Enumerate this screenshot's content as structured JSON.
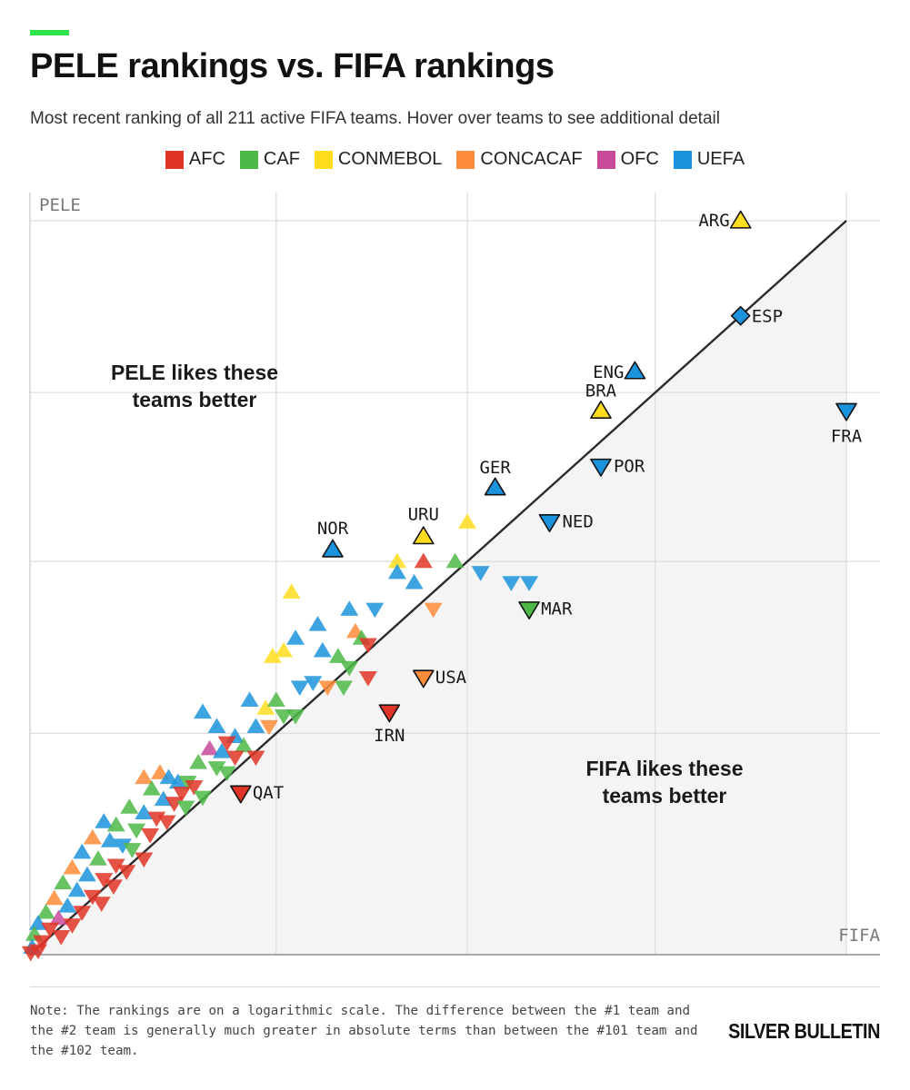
{
  "header": {
    "title": "PELE rankings vs. FIFA rankings",
    "subtitle": "Most recent ranking of all 211 active FIFA teams. Hover over teams to see additional detail"
  },
  "legend": [
    {
      "label": "AFC",
      "color": "#e03426"
    },
    {
      "label": "CAF",
      "color": "#4db848"
    },
    {
      "label": "CONMEBOL",
      "color": "#ffdd1e"
    },
    {
      "label": "CONCACAF",
      "color": "#ff8c3a"
    },
    {
      "label": "OFC",
      "color": "#c84b9a"
    },
    {
      "label": "UEFA",
      "color": "#1b93dc"
    }
  ],
  "chart_data": {
    "type": "scatter",
    "title": "PELE rankings vs. FIFA rankings",
    "xlabel": "FIFA",
    "ylabel": "PELE",
    "x_scale": "log-rank",
    "y_scale": "log-rank",
    "xlim": [
      211,
      1
    ],
    "ylim": [
      211,
      1
    ],
    "grid": true,
    "legend_position": "top-center",
    "annotations": [
      "PELE likes these teams better",
      "FIFA likes these teams better"
    ],
    "marker_key": {
      "triangle-up": "PELE rank better",
      "triangle-down": "FIFA rank better",
      "diamond": "equal"
    },
    "labeled_points": [
      {
        "team": "ARG",
        "fifa": 2,
        "pele": 1,
        "conf": "CONMEBOL",
        "marker": "triangle-up"
      },
      {
        "team": "ESP",
        "fifa": 2,
        "pele": 2,
        "conf": "UEFA",
        "marker": "diamond"
      },
      {
        "team": "ENG",
        "fifa": 4,
        "pele": 3,
        "conf": "UEFA",
        "marker": "triangle-up"
      },
      {
        "team": "FRA",
        "fifa": 1,
        "pele": 4,
        "conf": "UEFA",
        "marker": "triangle-down"
      },
      {
        "team": "BRA",
        "fifa": 5,
        "pele": 4,
        "conf": "CONMEBOL",
        "marker": "triangle-up"
      },
      {
        "team": "POR",
        "fifa": 5,
        "pele": 6,
        "conf": "UEFA",
        "marker": "triangle-down"
      },
      {
        "team": "GER",
        "fifa": 10,
        "pele": 7,
        "conf": "UEFA",
        "marker": "triangle-up"
      },
      {
        "team": "NED",
        "fifa": 7,
        "pele": 9,
        "conf": "UEFA",
        "marker": "triangle-down"
      },
      {
        "team": "URU",
        "fifa": 16,
        "pele": 10,
        "conf": "CONMEBOL",
        "marker": "triangle-up"
      },
      {
        "team": "NOR",
        "fifa": 29,
        "pele": 11,
        "conf": "UEFA",
        "marker": "triangle-up"
      },
      {
        "team": "MAR",
        "fifa": 8,
        "pele": 17,
        "conf": "CAF",
        "marker": "triangle-down"
      },
      {
        "team": "USA",
        "fifa": 16,
        "pele": 28,
        "conf": "CONCACAF",
        "marker": "triangle-down"
      },
      {
        "team": "IRN",
        "fifa": 20,
        "pele": 36,
        "conf": "AFC",
        "marker": "triangle-down"
      },
      {
        "team": "QAT",
        "fifa": 53,
        "pele": 65,
        "conf": "AFC",
        "marker": "triangle-down"
      }
    ],
    "points": [
      {
        "fifa": 12,
        "pele": 9,
        "conf": "CONMEBOL",
        "marker": "triangle-up"
      },
      {
        "fifa": 19,
        "pele": 12,
        "conf": "CONMEBOL",
        "marker": "triangle-up"
      },
      {
        "fifa": 16,
        "pele": 12,
        "conf": "AFC",
        "marker": "triangle-up"
      },
      {
        "fifa": 13,
        "pele": 12,
        "conf": "CAF",
        "marker": "triangle-up"
      },
      {
        "fifa": 11,
        "pele": 13,
        "conf": "UEFA",
        "marker": "triangle-down"
      },
      {
        "fifa": 9,
        "pele": 14,
        "conf": "UEFA",
        "marker": "triangle-down"
      },
      {
        "fifa": 8,
        "pele": 14,
        "conf": "UEFA",
        "marker": "triangle-down"
      },
      {
        "fifa": 19,
        "pele": 13,
        "conf": "UEFA",
        "marker": "triangle-up"
      },
      {
        "fifa": 17,
        "pele": 14,
        "conf": "UEFA",
        "marker": "triangle-up"
      },
      {
        "fifa": 15,
        "pele": 17,
        "conf": "CONCACAF",
        "marker": "triangle-down"
      },
      {
        "fifa": 38,
        "pele": 15,
        "conf": "CONMEBOL",
        "marker": "triangle-up"
      },
      {
        "fifa": 26,
        "pele": 17,
        "conf": "UEFA",
        "marker": "triangle-up"
      },
      {
        "fifa": 22,
        "pele": 17,
        "conf": "UEFA",
        "marker": "triangle-down"
      },
      {
        "fifa": 32,
        "pele": 19,
        "conf": "UEFA",
        "marker": "triangle-up"
      },
      {
        "fifa": 37,
        "pele": 21,
        "conf": "UEFA",
        "marker": "triangle-up"
      },
      {
        "fifa": 43,
        "pele": 24,
        "conf": "CONMEBOL",
        "marker": "triangle-up"
      },
      {
        "fifa": 40,
        "pele": 23,
        "conf": "CONMEBOL",
        "marker": "triangle-up"
      },
      {
        "fifa": 25,
        "pele": 20,
        "conf": "CONCACAF",
        "marker": "triangle-up"
      },
      {
        "fifa": 24,
        "pele": 21,
        "conf": "CAF",
        "marker": "triangle-up"
      },
      {
        "fifa": 23,
        "pele": 22,
        "conf": "AFC",
        "marker": "triangle-down"
      },
      {
        "fifa": 28,
        "pele": 24,
        "conf": "CAF",
        "marker": "triangle-up"
      },
      {
        "fifa": 31,
        "pele": 23,
        "conf": "UEFA",
        "marker": "triangle-up"
      },
      {
        "fifa": 26,
        "pele": 26,
        "conf": "CAF",
        "marker": "triangle-down"
      },
      {
        "fifa": 23,
        "pele": 28,
        "conf": "AFC",
        "marker": "triangle-down"
      },
      {
        "fifa": 27,
        "pele": 30,
        "conf": "CAF",
        "marker": "triangle-down"
      },
      {
        "fifa": 30,
        "pele": 30,
        "conf": "CONCACAF",
        "marker": "triangle-down"
      },
      {
        "fifa": 33,
        "pele": 29,
        "conf": "UEFA",
        "marker": "triangle-down"
      },
      {
        "fifa": 36,
        "pele": 30,
        "conf": "UEFA",
        "marker": "triangle-down"
      },
      {
        "fifa": 50,
        "pele": 33,
        "conf": "UEFA",
        "marker": "triangle-up"
      },
      {
        "fifa": 45,
        "pele": 35,
        "conf": "CONMEBOL",
        "marker": "triangle-up"
      },
      {
        "fifa": 42,
        "pele": 33,
        "conf": "CAF",
        "marker": "triangle-up"
      },
      {
        "fifa": 40,
        "pele": 37,
        "conf": "CAF",
        "marker": "triangle-down"
      },
      {
        "fifa": 37,
        "pele": 37,
        "conf": "CAF",
        "marker": "triangle-down"
      },
      {
        "fifa": 44,
        "pele": 40,
        "conf": "CONCACAF",
        "marker": "triangle-down"
      },
      {
        "fifa": 48,
        "pele": 40,
        "conf": "UEFA",
        "marker": "triangle-up"
      },
      {
        "fifa": 68,
        "pele": 36,
        "conf": "UEFA",
        "marker": "triangle-up"
      },
      {
        "fifa": 62,
        "pele": 40,
        "conf": "UEFA",
        "marker": "triangle-up"
      },
      {
        "fifa": 55,
        "pele": 43,
        "conf": "UEFA",
        "marker": "triangle-up"
      },
      {
        "fifa": 58,
        "pele": 45,
        "conf": "AFC",
        "marker": "triangle-down"
      },
      {
        "fifa": 52,
        "pele": 46,
        "conf": "CAF",
        "marker": "triangle-up"
      },
      {
        "fifa": 65,
        "pele": 47,
        "conf": "OFC",
        "marker": "triangle-up"
      },
      {
        "fifa": 60,
        "pele": 48,
        "conf": "UEFA",
        "marker": "triangle-up"
      },
      {
        "fifa": 55,
        "pele": 50,
        "conf": "AFC",
        "marker": "triangle-down"
      },
      {
        "fifa": 48,
        "pele": 50,
        "conf": "AFC",
        "marker": "triangle-down"
      },
      {
        "fifa": 70,
        "pele": 52,
        "conf": "CAF",
        "marker": "triangle-up"
      },
      {
        "fifa": 62,
        "pele": 54,
        "conf": "CAF",
        "marker": "triangle-down"
      },
      {
        "fifa": 58,
        "pele": 56,
        "conf": "CAF",
        "marker": "triangle-down"
      },
      {
        "fifa": 100,
        "pele": 58,
        "conf": "CONCACAF",
        "marker": "triangle-up"
      },
      {
        "fifa": 90,
        "pele": 56,
        "conf": "CONCACAF",
        "marker": "triangle-up"
      },
      {
        "fifa": 85,
        "pele": 58,
        "conf": "UEFA",
        "marker": "triangle-up"
      },
      {
        "fifa": 80,
        "pele": 60,
        "conf": "UEFA",
        "marker": "triangle-up"
      },
      {
        "fifa": 75,
        "pele": 60,
        "conf": "CAF",
        "marker": "triangle-down"
      },
      {
        "fifa": 72,
        "pele": 62,
        "conf": "AFC",
        "marker": "triangle-down"
      },
      {
        "fifa": 78,
        "pele": 65,
        "conf": "AFC",
        "marker": "triangle-down"
      },
      {
        "fifa": 68,
        "pele": 67,
        "conf": "CAF",
        "marker": "triangle-down"
      },
      {
        "fifa": 95,
        "pele": 63,
        "conf": "CAF",
        "marker": "triangle-up"
      },
      {
        "fifa": 88,
        "pele": 68,
        "conf": "UEFA",
        "marker": "triangle-up"
      },
      {
        "fifa": 82,
        "pele": 70,
        "conf": "AFC",
        "marker": "triangle-down"
      },
      {
        "fifa": 76,
        "pele": 72,
        "conf": "CAF",
        "marker": "triangle-down"
      },
      {
        "fifa": 110,
        "pele": 72,
        "conf": "CAF",
        "marker": "triangle-up"
      },
      {
        "fifa": 100,
        "pele": 75,
        "conf": "UEFA",
        "marker": "triangle-up"
      },
      {
        "fifa": 92,
        "pele": 78,
        "conf": "AFC",
        "marker": "triangle-down"
      },
      {
        "fifa": 86,
        "pele": 80,
        "conf": "AFC",
        "marker": "triangle-down"
      },
      {
        "fifa": 130,
        "pele": 80,
        "conf": "UEFA",
        "marker": "triangle-up"
      },
      {
        "fifa": 120,
        "pele": 82,
        "conf": "CAF",
        "marker": "triangle-up"
      },
      {
        "fifa": 105,
        "pele": 85,
        "conf": "CAF",
        "marker": "triangle-down"
      },
      {
        "fifa": 96,
        "pele": 88,
        "conf": "AFC",
        "marker": "triangle-down"
      },
      {
        "fifa": 140,
        "pele": 90,
        "conf": "CONCACAF",
        "marker": "triangle-up"
      },
      {
        "fifa": 125,
        "pele": 92,
        "conf": "UEFA",
        "marker": "triangle-up"
      },
      {
        "fifa": 115,
        "pele": 95,
        "conf": "UEFA",
        "marker": "triangle-down"
      },
      {
        "fifa": 108,
        "pele": 98,
        "conf": "CAF",
        "marker": "triangle-down"
      },
      {
        "fifa": 100,
        "pele": 105,
        "conf": "AFC",
        "marker": "triangle-down"
      },
      {
        "fifa": 150,
        "pele": 100,
        "conf": "UEFA",
        "marker": "triangle-up"
      },
      {
        "fifa": 135,
        "pele": 105,
        "conf": "CAF",
        "marker": "triangle-up"
      },
      {
        "fifa": 120,
        "pele": 110,
        "conf": "AFC",
        "marker": "triangle-down"
      },
      {
        "fifa": 112,
        "pele": 115,
        "conf": "AFC",
        "marker": "triangle-down"
      },
      {
        "fifa": 160,
        "pele": 112,
        "conf": "CONCACAF",
        "marker": "triangle-up"
      },
      {
        "fifa": 145,
        "pele": 118,
        "conf": "UEFA",
        "marker": "triangle-up"
      },
      {
        "fifa": 130,
        "pele": 122,
        "conf": "AFC",
        "marker": "triangle-down"
      },
      {
        "fifa": 122,
        "pele": 128,
        "conf": "AFC",
        "marker": "triangle-down"
      },
      {
        "fifa": 170,
        "pele": 125,
        "conf": "CAF",
        "marker": "triangle-up"
      },
      {
        "fifa": 155,
        "pele": 132,
        "conf": "UEFA",
        "marker": "triangle-up"
      },
      {
        "fifa": 140,
        "pele": 138,
        "conf": "AFC",
        "marker": "triangle-down"
      },
      {
        "fifa": 132,
        "pele": 145,
        "conf": "AFC",
        "marker": "triangle-down"
      },
      {
        "fifa": 180,
        "pele": 140,
        "conf": "CONCACAF",
        "marker": "triangle-up"
      },
      {
        "fifa": 165,
        "pele": 148,
        "conf": "UEFA",
        "marker": "triangle-up"
      },
      {
        "fifa": 150,
        "pele": 155,
        "conf": "AFC",
        "marker": "triangle-down"
      },
      {
        "fifa": 190,
        "pele": 155,
        "conf": "CAF",
        "marker": "triangle-up"
      },
      {
        "fifa": 175,
        "pele": 162,
        "conf": "OFC",
        "marker": "triangle-up"
      },
      {
        "fifa": 160,
        "pele": 170,
        "conf": "AFC",
        "marker": "triangle-down"
      },
      {
        "fifa": 200,
        "pele": 168,
        "conf": "UEFA",
        "marker": "triangle-up"
      },
      {
        "fifa": 185,
        "pele": 175,
        "conf": "AFC",
        "marker": "triangle-down"
      },
      {
        "fifa": 172,
        "pele": 185,
        "conf": "AFC",
        "marker": "triangle-down"
      },
      {
        "fifa": 205,
        "pele": 182,
        "conf": "CAF",
        "marker": "triangle-up"
      },
      {
        "fifa": 195,
        "pele": 192,
        "conf": "AFC",
        "marker": "triangle-down"
      },
      {
        "fifa": 208,
        "pele": 200,
        "conf": "UEFA",
        "marker": "triangle-up"
      },
      {
        "fifa": 200,
        "pele": 205,
        "conf": "AFC",
        "marker": "triangle-down"
      },
      {
        "fifa": 210,
        "pele": 208,
        "conf": "AFC",
        "marker": "triangle-down"
      }
    ]
  },
  "footer": {
    "note": "Note: The rankings are on a logarithmic scale. The difference between the #1 team and the #2 team is generally much greater in absolute terms than between the #101 team and the #102 team.",
    "brand": "SILVER BULLETIN"
  }
}
